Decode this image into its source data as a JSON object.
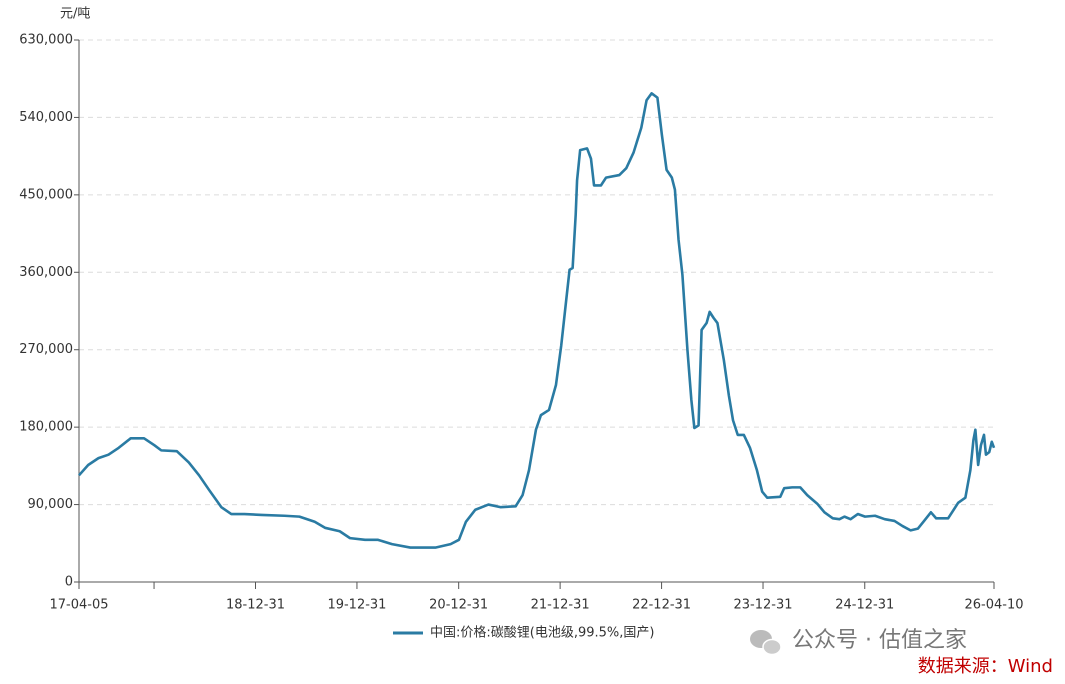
{
  "chart_data": {
    "type": "line",
    "y_unit": "元/吨",
    "legend_label": "中国:价格:碳酸锂(电池级,99.5%,国产)",
    "watermark": "公众号 · 估值之家",
    "source": "数据来源：Wind",
    "xlim": [
      "17-04-05",
      "26-04-10"
    ],
    "xticks": [
      "17-04-05",
      "18-12-31",
      "19-12-31",
      "20-12-31",
      "21-12-31",
      "22-12-31",
      "23-12-31",
      "24-12-31",
      "26-04-10"
    ],
    "xticks_unlabeled": [
      "17-12-31"
    ],
    "ylim": [
      0,
      630000
    ],
    "yticks": [
      0,
      {
        "value": 90000,
        "label": "90,000"
      },
      {
        "value": 180000,
        "label": "180,000"
      },
      {
        "value": 270000,
        "label": "270,000"
      },
      {
        "value": 360000,
        "label": "360,000"
      },
      {
        "value": 450000,
        "label": "450,000"
      },
      {
        "value": 540000,
        "label": "540,000"
      },
      {
        "value": 630000,
        "label": "630,000"
      }
    ],
    "grid": true,
    "series": [
      {
        "name": "中国:价格:碳酸锂(电池级,99.5%,国产)",
        "color": "#2a7ba3",
        "x": [
          "17-04-05",
          "17-05-08",
          "17-06-14",
          "17-07-20",
          "17-08-26",
          "17-10-08",
          "17-11-25",
          "18-01-01",
          "18-01-26",
          "18-03-23",
          "18-05-05",
          "18-06-11",
          "18-07-17",
          "18-08-30",
          "18-10-05",
          "18-11-21",
          "19-01-22",
          "19-04-14",
          "19-06-07",
          "19-08-01",
          "19-09-07",
          "19-10-30",
          "19-12-06",
          "20-01-29",
          "20-03-16",
          "20-05-05",
          "20-07-10",
          "20-10-08",
          "20-12-02",
          "21-01-01",
          "21-01-26",
          "21-03-01",
          "21-04-17",
          "21-05-30",
          "21-07-24",
          "21-08-18",
          "21-09-10",
          "21-10-05",
          "21-10-23",
          "21-11-21",
          "21-12-16",
          "22-01-04",
          "22-01-22",
          "22-02-03",
          "22-02-14",
          "22-02-25",
          "22-03-02",
          "22-03-13",
          "22-04-07",
          "22-04-21",
          "22-05-02",
          "22-05-27",
          "22-06-14",
          "22-08-01",
          "22-08-26",
          "22-09-21",
          "22-10-19",
          "22-11-07",
          "22-11-25",
          "22-12-16",
          "23-01-01",
          "23-01-18",
          "23-02-06",
          "23-02-17",
          "23-03-02",
          "23-03-16",
          "23-04-03",
          "23-04-17",
          "23-04-28",
          "23-05-13",
          "23-05-24",
          "23-06-11",
          "23-06-22",
          "23-07-06",
          "23-07-20",
          "23-08-12",
          "23-08-30",
          "23-09-14",
          "23-10-01",
          "23-10-23",
          "23-11-14",
          "23-12-09",
          "23-12-28",
          "24-01-15",
          "24-03-02",
          "24-03-16",
          "24-04-14",
          "24-05-13",
          "24-06-07",
          "24-07-13",
          "24-08-08",
          "24-09-07",
          "24-10-01",
          "24-10-19",
          "24-11-10",
          "24-12-06",
          "25-01-01",
          "25-02-06",
          "25-03-13",
          "25-04-17",
          "25-05-16",
          "25-06-14",
          "25-07-10",
          "25-08-04",
          "25-08-26",
          "25-09-14",
          "25-10-27",
          "25-12-02",
          "25-12-28",
          "26-01-15",
          "26-01-26",
          "26-02-02",
          "26-02-12",
          "26-02-22",
          "26-03-05",
          "26-03-12",
          "26-03-24",
          "26-04-02",
          "26-04-10"
        ],
        "values": [
          124000,
          136000,
          144000,
          148000,
          156000,
          167000,
          167000,
          159000,
          153000,
          152000,
          139000,
          124000,
          107000,
          87000,
          79000,
          79000,
          78000,
          77000,
          76000,
          70000,
          63000,
          59000,
          51000,
          49000,
          49000,
          44000,
          40000,
          40000,
          44000,
          49000,
          70000,
          84000,
          90000,
          87000,
          88000,
          101000,
          130000,
          177000,
          194000,
          200000,
          229000,
          275000,
          328000,
          363000,
          365000,
          427000,
          467000,
          502000,
          504000,
          492000,
          461000,
          461000,
          470000,
          473000,
          481000,
          499000,
          528000,
          560000,
          568000,
          563000,
          520000,
          479000,
          470000,
          456000,
          398000,
          357000,
          270000,
          212000,
          179000,
          182000,
          293000,
          301000,
          314000,
          307000,
          301000,
          258000,
          217000,
          188000,
          171000,
          171000,
          156000,
          130000,
          105000,
          98000,
          99000,
          109000,
          110000,
          110000,
          101000,
          91000,
          81000,
          74000,
          73000,
          76000,
          73000,
          79000,
          76000,
          77000,
          73000,
          71000,
          65000,
          60000,
          62000,
          72000,
          81000,
          74000,
          74000,
          92000,
          98000,
          130000,
          165000,
          177000,
          136000,
          159000,
          171000,
          148000,
          151000,
          163000,
          156000
        ]
      }
    ]
  }
}
